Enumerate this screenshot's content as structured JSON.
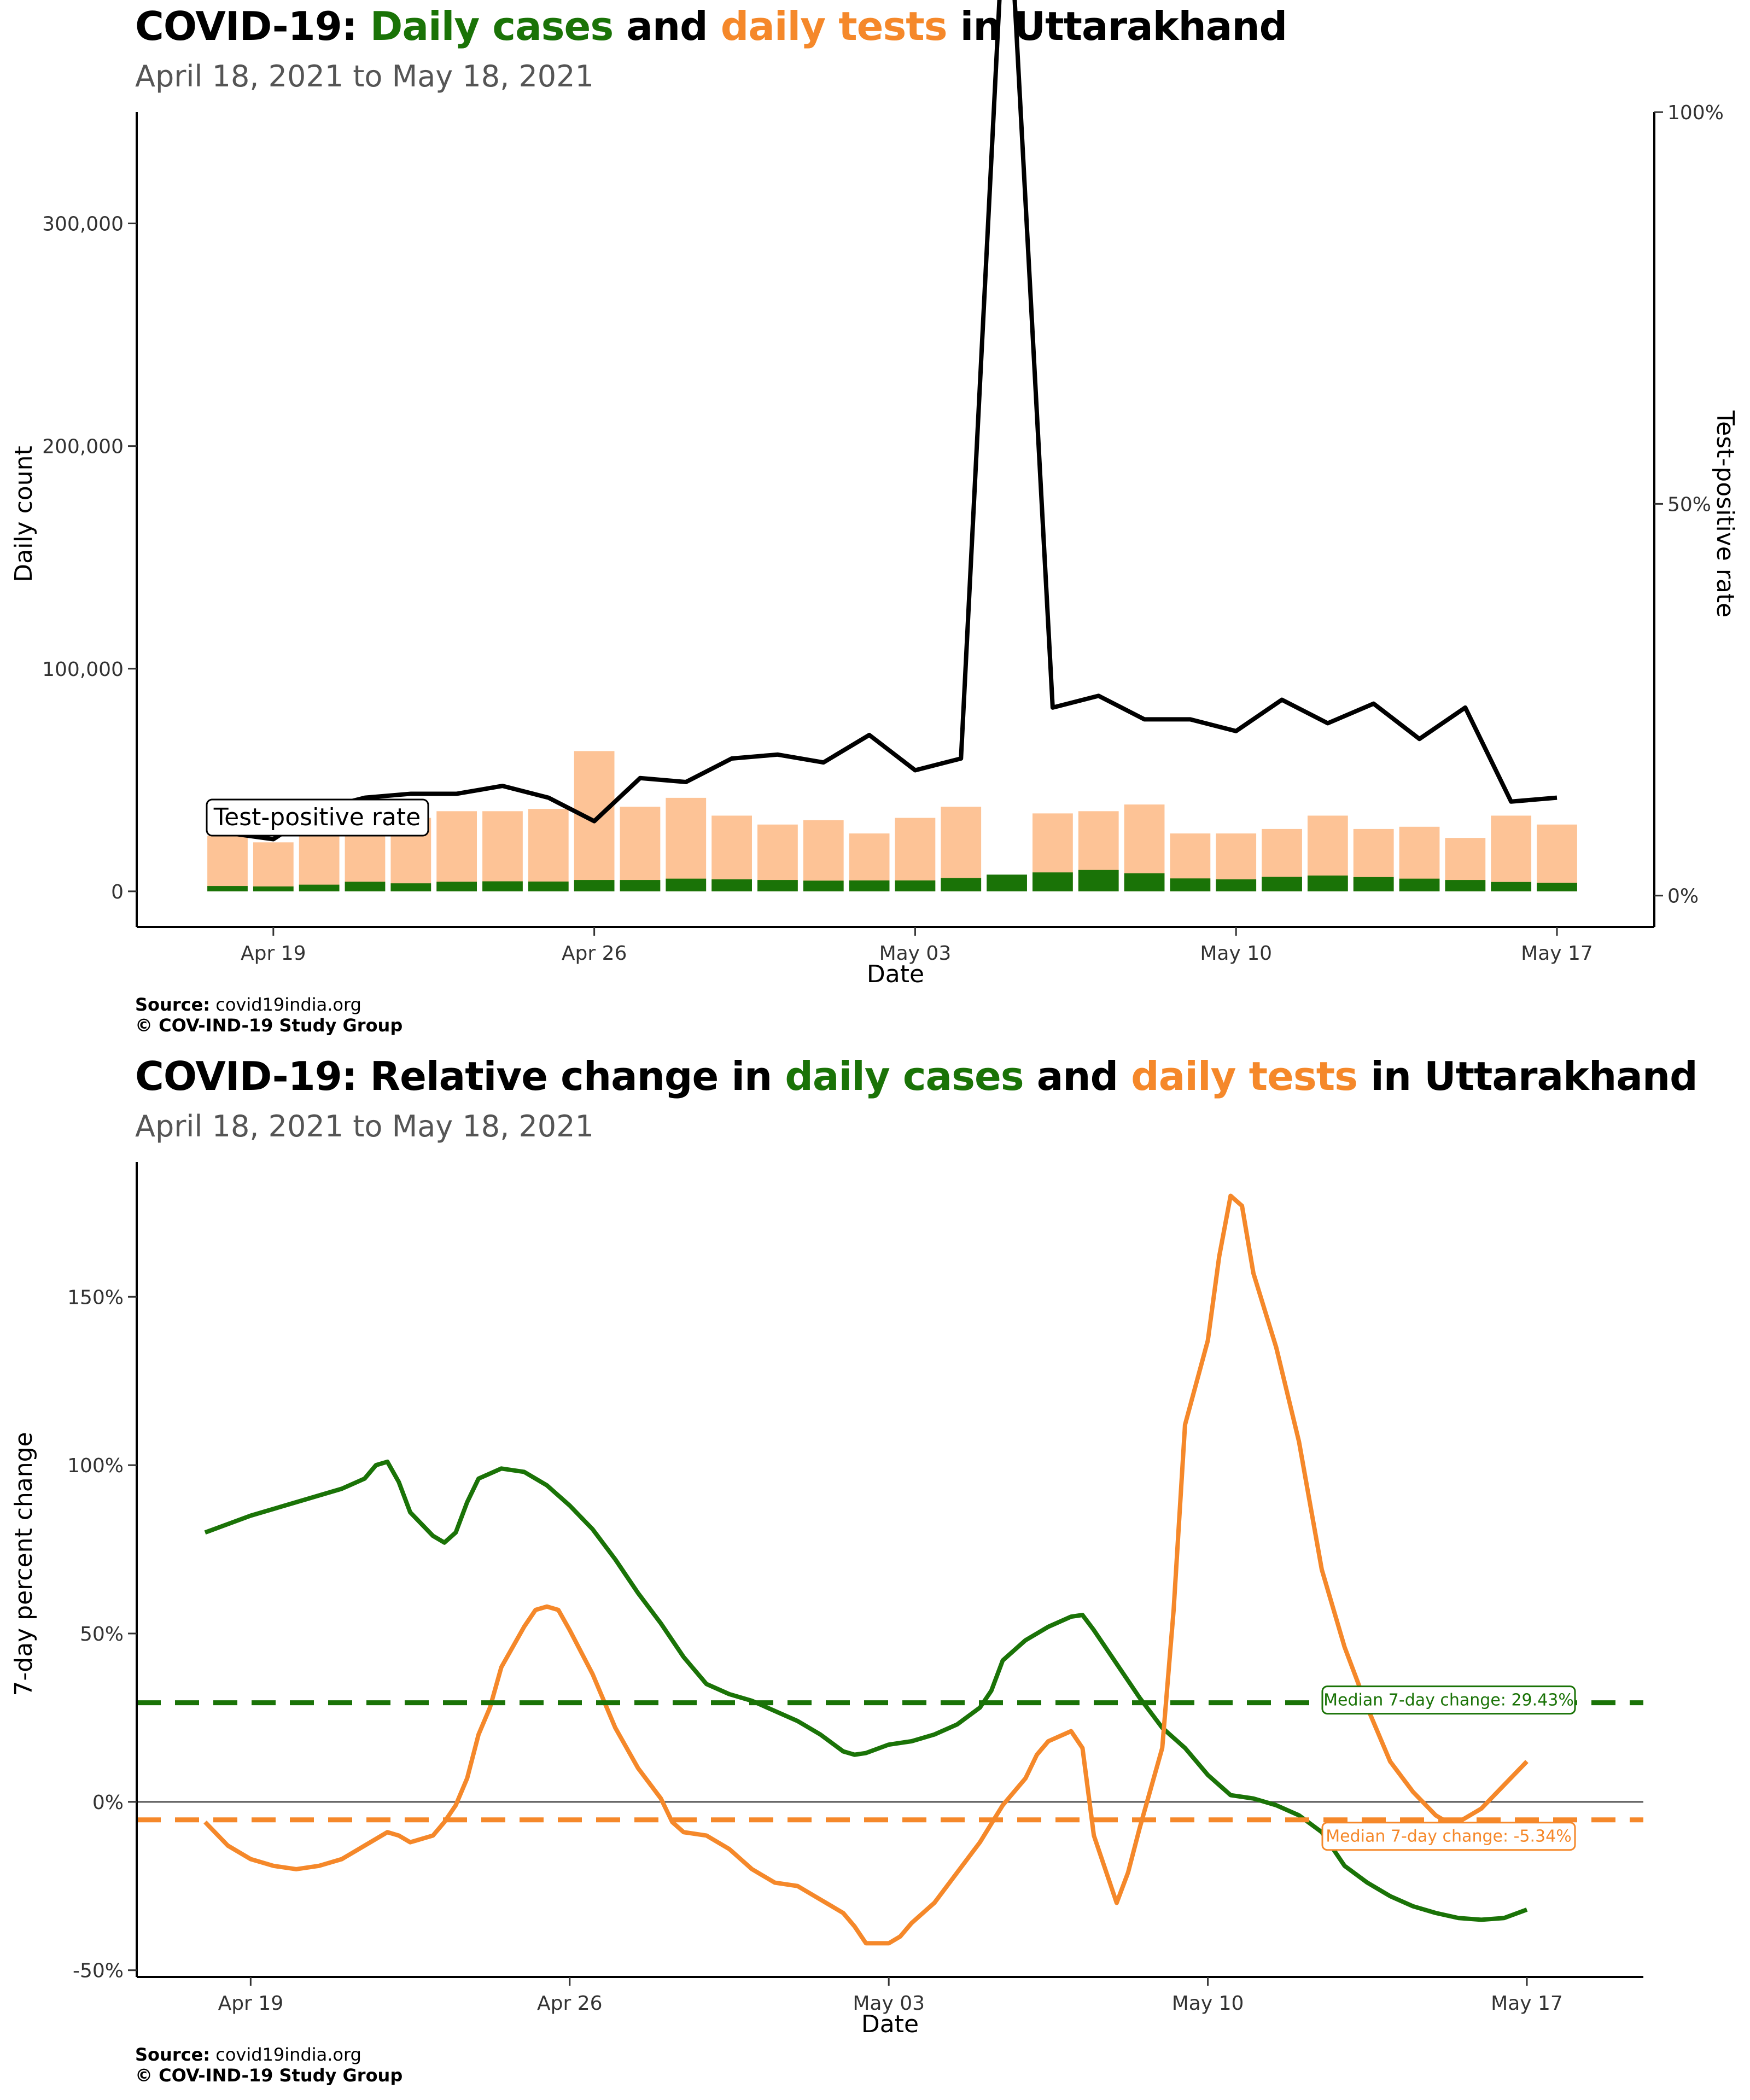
{
  "charts": [
    {
      "title_parts": [
        "COVID-19: ",
        "Daily cases",
        " and ",
        "daily tests",
        " in Uttarakhand"
      ],
      "subtitle": "April 18, 2021 to May 18, 2021",
      "source_label": "Source:",
      "source_value": " covid19india.org",
      "copyright": "© COV-IND-19 Study Group"
    },
    {
      "title_parts": [
        "COVID-19: Relative change in ",
        "daily cases",
        " and ",
        "daily tests",
        " in Uttarakhand"
      ],
      "subtitle": "April 18, 2021 to May 18, 2021",
      "source_label": "Source:",
      "source_value": " covid19india.org",
      "copyright": "© COV-IND-19 Study Group"
    }
  ],
  "colors": {
    "cases": "#1a7307",
    "tests": "#f5882a",
    "tests_bar": "#fdc396",
    "tpr_line": "#000000"
  },
  "chart_data": [
    {
      "type": "bar",
      "xlabel": "Date",
      "ylabel": "Daily count",
      "ylabel_right": "Test-positive rate",
      "ylim": [
        -16000,
        350000
      ],
      "ylim_right": [
        -0.04,
        1.0
      ],
      "x_ticks": [
        {
          "value": "2021-04-19",
          "label": "Apr 19"
        },
        {
          "value": "2021-04-26",
          "label": "Apr 26"
        },
        {
          "value": "2021-05-03",
          "label": "May 03"
        },
        {
          "value": "2021-05-10",
          "label": "May 10"
        },
        {
          "value": "2021-05-17",
          "label": "May 17"
        }
      ],
      "y_ticks": [
        {
          "value": 0,
          "label": "0"
        },
        {
          "value": 100000,
          "label": "100,000"
        },
        {
          "value": 200000,
          "label": "200,000"
        },
        {
          "value": 300000,
          "label": "300,000"
        }
      ],
      "y_ticks_right": [
        {
          "value": 0,
          "label": "0%"
        },
        {
          "value": 0.5,
          "label": "50%"
        },
        {
          "value": 1.0,
          "label": "100%"
        }
      ],
      "annotation": "Test-positive rate",
      "dates": [
        "2021-04-18",
        "2021-04-19",
        "2021-04-20",
        "2021-04-21",
        "2021-04-22",
        "2021-04-23",
        "2021-04-24",
        "2021-04-25",
        "2021-04-26",
        "2021-04-27",
        "2021-04-28",
        "2021-04-29",
        "2021-04-30",
        "2021-05-01",
        "2021-05-02",
        "2021-05-03",
        "2021-05-04",
        "2021-05-05",
        "2021-05-06",
        "2021-05-07",
        "2021-05-08",
        "2021-05-09",
        "2021-05-10",
        "2021-05-11",
        "2021-05-12",
        "2021-05-13",
        "2021-05-14",
        "2021-05-15",
        "2021-05-16",
        "2021-05-17"
      ],
      "series": [
        {
          "name": "daily tests",
          "values": [
            25000,
            22000,
            29000,
            35000,
            33000,
            36000,
            36000,
            37000,
            63000,
            38000,
            42000,
            34000,
            30000,
            32000,
            26000,
            33000,
            38000,
            0,
            35000,
            36000,
            39000,
            26000,
            26000,
            28000,
            34000,
            28000,
            29000,
            24000,
            34000,
            30000
          ]
        },
        {
          "name": "daily cases",
          "values": [
            2400,
            2200,
            3000,
            4300,
            3600,
            4300,
            4500,
            4400,
            5100,
            5100,
            5700,
            5400,
            5100,
            4800,
            4900,
            4900,
            6000,
            7500,
            8500,
            9600,
            8100,
            5800,
            5400,
            6500,
            7100,
            6400,
            5700,
            5100,
            4200,
            3800
          ]
        },
        {
          "name": "Test-positive rate",
          "values": [
            0.08,
            0.072,
            0.11,
            0.125,
            0.13,
            0.13,
            0.14,
            0.125,
            0.095,
            0.15,
            0.145,
            0.175,
            0.18,
            0.17,
            0.205,
            0.16,
            0.175,
            1.33,
            0.24,
            0.255,
            0.225,
            0.225,
            0.21,
            0.25,
            0.22,
            0.245,
            0.2,
            0.24,
            0.12,
            0.125
          ]
        }
      ]
    },
    {
      "type": "line",
      "xlabel": "Date",
      "ylabel": "7-day percent change",
      "ylim": [
        -0.52,
        1.9
      ],
      "x_ticks": [
        {
          "value": "2021-04-19",
          "label": "Apr 19"
        },
        {
          "value": "2021-04-26",
          "label": "Apr 26"
        },
        {
          "value": "2021-05-03",
          "label": "May 03"
        },
        {
          "value": "2021-05-10",
          "label": "May 10"
        },
        {
          "value": "2021-05-17",
          "label": "May 17"
        }
      ],
      "y_ticks": [
        {
          "value": -0.5,
          "label": "-50%"
        },
        {
          "value": 0,
          "label": "0%"
        },
        {
          "value": 0.5,
          "label": "50%"
        },
        {
          "value": 1.0,
          "label": "100%"
        },
        {
          "value": 1.5,
          "label": "150%"
        }
      ],
      "medians": [
        {
          "series": "daily cases",
          "value": 0.2943,
          "label": "Median 7-day change: 29.43%"
        },
        {
          "series": "daily tests",
          "value": -0.0534,
          "label": "Median 7-day change: -5.34%"
        }
      ],
      "series": [
        {
          "name": "daily cases",
          "points": [
            [
              "2021-04-18",
              0.8
            ],
            [
              "2021-04-19",
              0.85
            ],
            [
              "2021-04-20",
              0.89
            ],
            [
              "2021-04-21",
              0.93
            ],
            [
              "2021-04-21T12",
              0.96
            ],
            [
              "2021-04-21T18",
              1.0
            ],
            [
              "2021-04-22",
              1.01
            ],
            [
              "2021-04-22T06",
              0.95
            ],
            [
              "2021-04-22T12",
              0.86
            ],
            [
              "2021-04-23",
              0.79
            ],
            [
              "2021-04-23T06",
              0.77
            ],
            [
              "2021-04-23T12",
              0.8
            ],
            [
              "2021-04-23T18",
              0.89
            ],
            [
              "2021-04-24",
              0.96
            ],
            [
              "2021-04-24T12",
              0.99
            ],
            [
              "2021-04-25",
              0.98
            ],
            [
              "2021-04-25T12",
              0.94
            ],
            [
              "2021-04-26",
              0.88
            ],
            [
              "2021-04-26T12",
              0.81
            ],
            [
              "2021-04-27",
              0.72
            ],
            [
              "2021-04-27T12",
              0.62
            ],
            [
              "2021-04-28",
              0.53
            ],
            [
              "2021-04-28T12",
              0.43
            ],
            [
              "2021-04-29",
              0.35
            ],
            [
              "2021-04-29T12",
              0.32
            ],
            [
              "2021-04-30",
              0.3
            ],
            [
              "2021-05-01",
              0.24
            ],
            [
              "2021-05-01T12",
              0.2
            ],
            [
              "2021-05-02",
              0.15
            ],
            [
              "2021-05-02T06",
              0.14
            ],
            [
              "2021-05-02T12",
              0.145
            ],
            [
              "2021-05-03",
              0.17
            ],
            [
              "2021-05-03T12",
              0.18
            ],
            [
              "2021-05-04",
              0.2
            ],
            [
              "2021-05-04T12",
              0.23
            ],
            [
              "2021-05-05",
              0.28
            ],
            [
              "2021-05-05T06",
              0.33
            ],
            [
              "2021-05-05T12",
              0.42
            ],
            [
              "2021-05-06",
              0.48
            ],
            [
              "2021-05-06T12",
              0.52
            ],
            [
              "2021-05-07",
              0.55
            ],
            [
              "2021-05-07T06",
              0.555
            ],
            [
              "2021-05-07T12",
              0.51
            ],
            [
              "2021-05-08",
              0.41
            ],
            [
              "2021-05-08T12",
              0.31
            ],
            [
              "2021-05-09",
              0.22
            ],
            [
              "2021-05-09T12",
              0.16
            ],
            [
              "2021-05-10",
              0.08
            ],
            [
              "2021-05-10T12",
              0.02
            ],
            [
              "2021-05-11",
              0.01
            ],
            [
              "2021-05-11T12",
              -0.01
            ],
            [
              "2021-05-12",
              -0.04
            ],
            [
              "2021-05-12T12",
              -0.09
            ],
            [
              "2021-05-13",
              -0.19
            ],
            [
              "2021-05-13T12",
              -0.24
            ],
            [
              "2021-05-14",
              -0.28
            ],
            [
              "2021-05-14T12",
              -0.31
            ],
            [
              "2021-05-15",
              -0.33
            ],
            [
              "2021-05-15T12",
              -0.345
            ],
            [
              "2021-05-16",
              -0.35
            ],
            [
              "2021-05-16T12",
              -0.345
            ],
            [
              "2021-05-17",
              -0.32
            ]
          ]
        },
        {
          "name": "daily tests",
          "points": [
            [
              "2021-04-18",
              -0.06
            ],
            [
              "2021-04-18T12",
              -0.13
            ],
            [
              "2021-04-19",
              -0.17
            ],
            [
              "2021-04-19T12",
              -0.19
            ],
            [
              "2021-04-20",
              -0.2
            ],
            [
              "2021-04-20T12",
              -0.19
            ],
            [
              "2021-04-21",
              -0.17
            ],
            [
              "2021-04-21T12",
              -0.13
            ],
            [
              "2021-04-22",
              -0.09
            ],
            [
              "2021-04-22T06",
              -0.1
            ],
            [
              "2021-04-22T12",
              -0.12
            ],
            [
              "2021-04-23",
              -0.1
            ],
            [
              "2021-04-23T06",
              -0.06
            ],
            [
              "2021-04-23T12",
              -0.01
            ],
            [
              "2021-04-23T18",
              0.07
            ],
            [
              "2021-04-24",
              0.2
            ],
            [
              "2021-04-24T06",
              0.28
            ],
            [
              "2021-04-24T12",
              0.4
            ],
            [
              "2021-04-25",
              0.52
            ],
            [
              "2021-04-25T06",
              0.57
            ],
            [
              "2021-04-25T12",
              0.58
            ],
            [
              "2021-04-25T18",
              0.57
            ],
            [
              "2021-04-26",
              0.51
            ],
            [
              "2021-04-26T12",
              0.38
            ],
            [
              "2021-04-27",
              0.22
            ],
            [
              "2021-04-27T12",
              0.1
            ],
            [
              "2021-04-28",
              0.01
            ],
            [
              "2021-04-28T06",
              -0.06
            ],
            [
              "2021-04-28T12",
              -0.09
            ],
            [
              "2021-04-29",
              -0.1
            ],
            [
              "2021-04-29T12",
              -0.14
            ],
            [
              "2021-04-30",
              -0.2
            ],
            [
              "2021-04-30T12",
              -0.24
            ],
            [
              "2021-05-01",
              -0.25
            ],
            [
              "2021-05-01T12",
              -0.29
            ],
            [
              "2021-05-02",
              -0.33
            ],
            [
              "2021-05-02T06",
              -0.37
            ],
            [
              "2021-05-02T12",
              -0.42
            ],
            [
              "2021-05-03",
              -0.42
            ],
            [
              "2021-05-03T06",
              -0.4
            ],
            [
              "2021-05-03T12",
              -0.36
            ],
            [
              "2021-05-04",
              -0.3
            ],
            [
              "2021-05-04T12",
              -0.21
            ],
            [
              "2021-05-05",
              -0.12
            ],
            [
              "2021-05-05T12",
              -0.01
            ],
            [
              "2021-05-06",
              0.07
            ],
            [
              "2021-05-06T06",
              0.14
            ],
            [
              "2021-05-06T12",
              0.18
            ],
            [
              "2021-05-07",
              0.21
            ],
            [
              "2021-05-07T06",
              0.16
            ],
            [
              "2021-05-07T12",
              -0.1
            ],
            [
              "2021-05-08",
              -0.3
            ],
            [
              "2021-05-08T06",
              -0.21
            ],
            [
              "2021-05-08T12",
              -0.08
            ],
            [
              "2021-05-09",
              0.16
            ],
            [
              "2021-05-09T06",
              0.57
            ],
            [
              "2021-05-09T12",
              1.12
            ],
            [
              "2021-05-10",
              1.37
            ],
            [
              "2021-05-10T06",
              1.62
            ],
            [
              "2021-05-10T12",
              1.8
            ],
            [
              "2021-05-10T18",
              1.77
            ],
            [
              "2021-05-11",
              1.57
            ],
            [
              "2021-05-11T12",
              1.35
            ],
            [
              "2021-05-12",
              1.07
            ],
            [
              "2021-05-12T12",
              0.69
            ],
            [
              "2021-05-13",
              0.46
            ],
            [
              "2021-05-13T12",
              0.28
            ],
            [
              "2021-05-14",
              0.12
            ],
            [
              "2021-05-14T12",
              0.03
            ],
            [
              "2021-05-15",
              -0.04
            ],
            [
              "2021-05-15T06",
              -0.06
            ],
            [
              "2021-05-15T12",
              -0.06
            ],
            [
              "2021-05-16",
              -0.02
            ],
            [
              "2021-05-16T12",
              0.05
            ],
            [
              "2021-05-17",
              0.12
            ]
          ]
        }
      ]
    }
  ]
}
